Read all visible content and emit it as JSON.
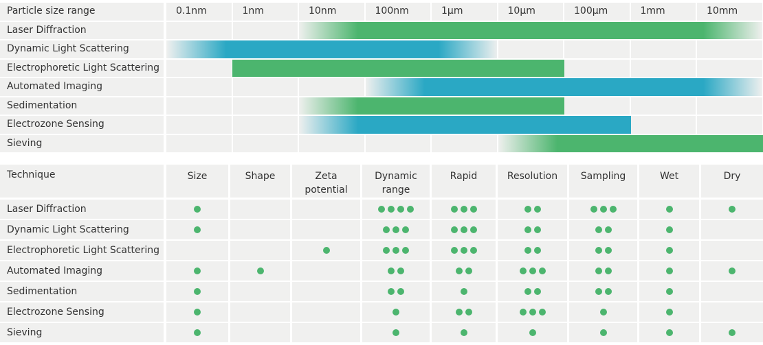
{
  "colors": {
    "green": "#4cb56e",
    "teal": "#2aa8c4",
    "cell_bg": "#f0f0ef",
    "text": "#333333"
  },
  "chart_data": [
    {
      "type": "gantt",
      "axis_label": "Particle size range",
      "ticks": [
        "0.1nm",
        "1nm",
        "10nm",
        "100nm",
        "1µm",
        "10µm",
        "100µm",
        "1mm",
        "10mm"
      ],
      "rows": [
        {
          "label": "Laser Diffraction",
          "color": "green",
          "start": 2,
          "end": 9,
          "fade_in": 0.9,
          "fade_out": 0.9
        },
        {
          "label": "Dynamic Light Scattering",
          "color": "teal",
          "start": 0,
          "end": 5,
          "fade_in": 0.9,
          "fade_out": 0.9
        },
        {
          "label": "Electrophoretic Light Scattering",
          "color": "green",
          "start": 1,
          "end": 6,
          "fade_in": 0,
          "fade_out": 0
        },
        {
          "label": "Automated Imaging",
          "color": "teal",
          "start": 3,
          "end": 9,
          "fade_in": 0.9,
          "fade_out": 0.9
        },
        {
          "label": "Sedimentation",
          "color": "green",
          "start": 2,
          "end": 6,
          "fade_in": 0.9,
          "fade_out": 0
        },
        {
          "label": "Electrozone Sensing",
          "color": "teal",
          "start": 2,
          "end": 7,
          "fade_in": 0.9,
          "fade_out": 0
        },
        {
          "label": "Sieving",
          "color": "green",
          "start": 5,
          "end": 9,
          "fade_in": 0.9,
          "fade_out": 0
        }
      ]
    },
    {
      "type": "table",
      "corner_label": "Technique",
      "columns": [
        "Size",
        "Shape",
        "Zeta\npotential",
        "Dynamic\nrange",
        "Rapid",
        "Resolution",
        "Sampling",
        "Wet",
        "Dry"
      ],
      "rows": [
        {
          "label": "Laser Diffraction",
          "values": [
            1,
            0,
            0,
            4,
            3,
            2,
            3,
            1,
            1
          ]
        },
        {
          "label": "Dynamic Light Scattering",
          "values": [
            1,
            0,
            0,
            3,
            3,
            2,
            2,
            1,
            0
          ]
        },
        {
          "label": "Electrophoretic Light Scattering",
          "values": [
            0,
            0,
            1,
            3,
            3,
            2,
            2,
            1,
            0
          ]
        },
        {
          "label": "Automated Imaging",
          "values": [
            1,
            1,
            0,
            2,
            2,
            3,
            2,
            1,
            1
          ]
        },
        {
          "label": "Sedimentation",
          "values": [
            1,
            0,
            0,
            2,
            1,
            2,
            2,
            1,
            0
          ]
        },
        {
          "label": "Electrozone Sensing",
          "values": [
            1,
            0,
            0,
            1,
            2,
            3,
            1,
            1,
            0
          ]
        },
        {
          "label": "Sieving",
          "values": [
            1,
            0,
            0,
            1,
            1,
            1,
            1,
            1,
            1
          ]
        }
      ]
    }
  ]
}
